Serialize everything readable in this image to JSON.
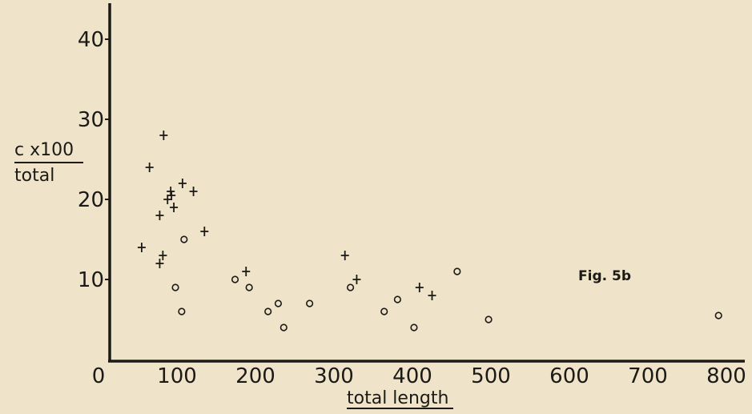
{
  "chart_data": {
    "type": "scatter",
    "title": "",
    "annotation": "Fig. 5b",
    "xlabel": "total length",
    "ylabel": {
      "numerator": "c x100",
      "denominator": "total"
    },
    "xlim": [
      -15,
      830
    ],
    "ylim": [
      0,
      44
    ],
    "x_ticks": [
      0,
      100,
      200,
      300,
      400,
      500,
      600,
      700,
      800
    ],
    "x_tick_labels": [
      "0",
      "100",
      "200",
      "300",
      "400",
      "500",
      "600",
      "700",
      "800"
    ],
    "y_ticks": [
      10,
      20,
      30,
      40
    ],
    "y_tick_labels": [
      "10",
      "20",
      "30",
      "40"
    ],
    "grid": false,
    "series": [
      {
        "marker": "plus",
        "points": [
          {
            "x": 55,
            "y": 14
          },
          {
            "x": 65,
            "y": 24
          },
          {
            "x": 78,
            "y": 18
          },
          {
            "x": 78,
            "y": 12
          },
          {
            "x": 82,
            "y": 13
          },
          {
            "x": 83,
            "y": 28
          },
          {
            "x": 88,
            "y": 20
          },
          {
            "x": 92,
            "y": 21
          },
          {
            "x": 93,
            "y": 20.5
          },
          {
            "x": 96,
            "y": 19
          },
          {
            "x": 107,
            "y": 22
          },
          {
            "x": 121,
            "y": 21
          },
          {
            "x": 135,
            "y": 16
          },
          {
            "x": 188,
            "y": 11
          },
          {
            "x": 314,
            "y": 13
          },
          {
            "x": 329,
            "y": 10
          },
          {
            "x": 409,
            "y": 9
          },
          {
            "x": 425,
            "y": 8
          }
        ]
      },
      {
        "marker": "circle",
        "points": [
          {
            "x": 98,
            "y": 9
          },
          {
            "x": 106,
            "y": 6
          },
          {
            "x": 109,
            "y": 15
          },
          {
            "x": 174,
            "y": 10
          },
          {
            "x": 192,
            "y": 9
          },
          {
            "x": 216,
            "y": 6
          },
          {
            "x": 229,
            "y": 7
          },
          {
            "x": 236,
            "y": 4
          },
          {
            "x": 269,
            "y": 7
          },
          {
            "x": 321,
            "y": 9
          },
          {
            "x": 364,
            "y": 6
          },
          {
            "x": 381,
            "y": 7.5
          },
          {
            "x": 402,
            "y": 4
          },
          {
            "x": 457,
            "y": 11
          },
          {
            "x": 497,
            "y": 5
          },
          {
            "x": 790,
            "y": 5.5
          }
        ]
      }
    ]
  }
}
